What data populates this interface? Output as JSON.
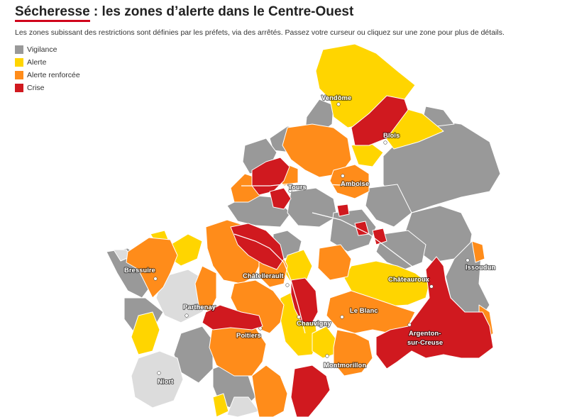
{
  "header": {
    "title_keyword": "Sécheresse",
    "title_rest": " : les zones d’alerte dans le Centre-Ouest",
    "subtitle": "Les zones subissant des restrictions sont définies par les préfets, via des arrêtés. Passez votre curseur ou cliquez sur une zone pour plus de détails."
  },
  "legend": [
    {
      "label": "Vigilance",
      "color": "#999999"
    },
    {
      "label": "Alerte",
      "color": "#ffd500"
    },
    {
      "label": "Alerte renforcée",
      "color": "#ff8c1a"
    },
    {
      "label": "Crise",
      "color": "#d0191f"
    }
  ],
  "colors": {
    "none": "#dcdcdc",
    "vigilance": "#999999",
    "alerte": "#ffd500",
    "renforcee": "#ff8c1a",
    "crise": "#d0191f"
  },
  "cities": {
    "vendome": "Vendôme",
    "blois": "Blois",
    "tours": "Tours",
    "amboise": "Amboise",
    "bressuire": "Bressuire",
    "chatellerault": "Châtellerault",
    "chateauroux": "Châteauroux",
    "issoudun": "Issoudun",
    "parthenay": "Parthenay",
    "le_blanc": "Le Blanc",
    "poitiers": "Poitiers",
    "chauvigny": "Chauvigny",
    "argenton_1": "Argenton-",
    "argenton_2": "sur-Creuse",
    "montmorillon": "Montmorillon",
    "niort": "Niort"
  }
}
